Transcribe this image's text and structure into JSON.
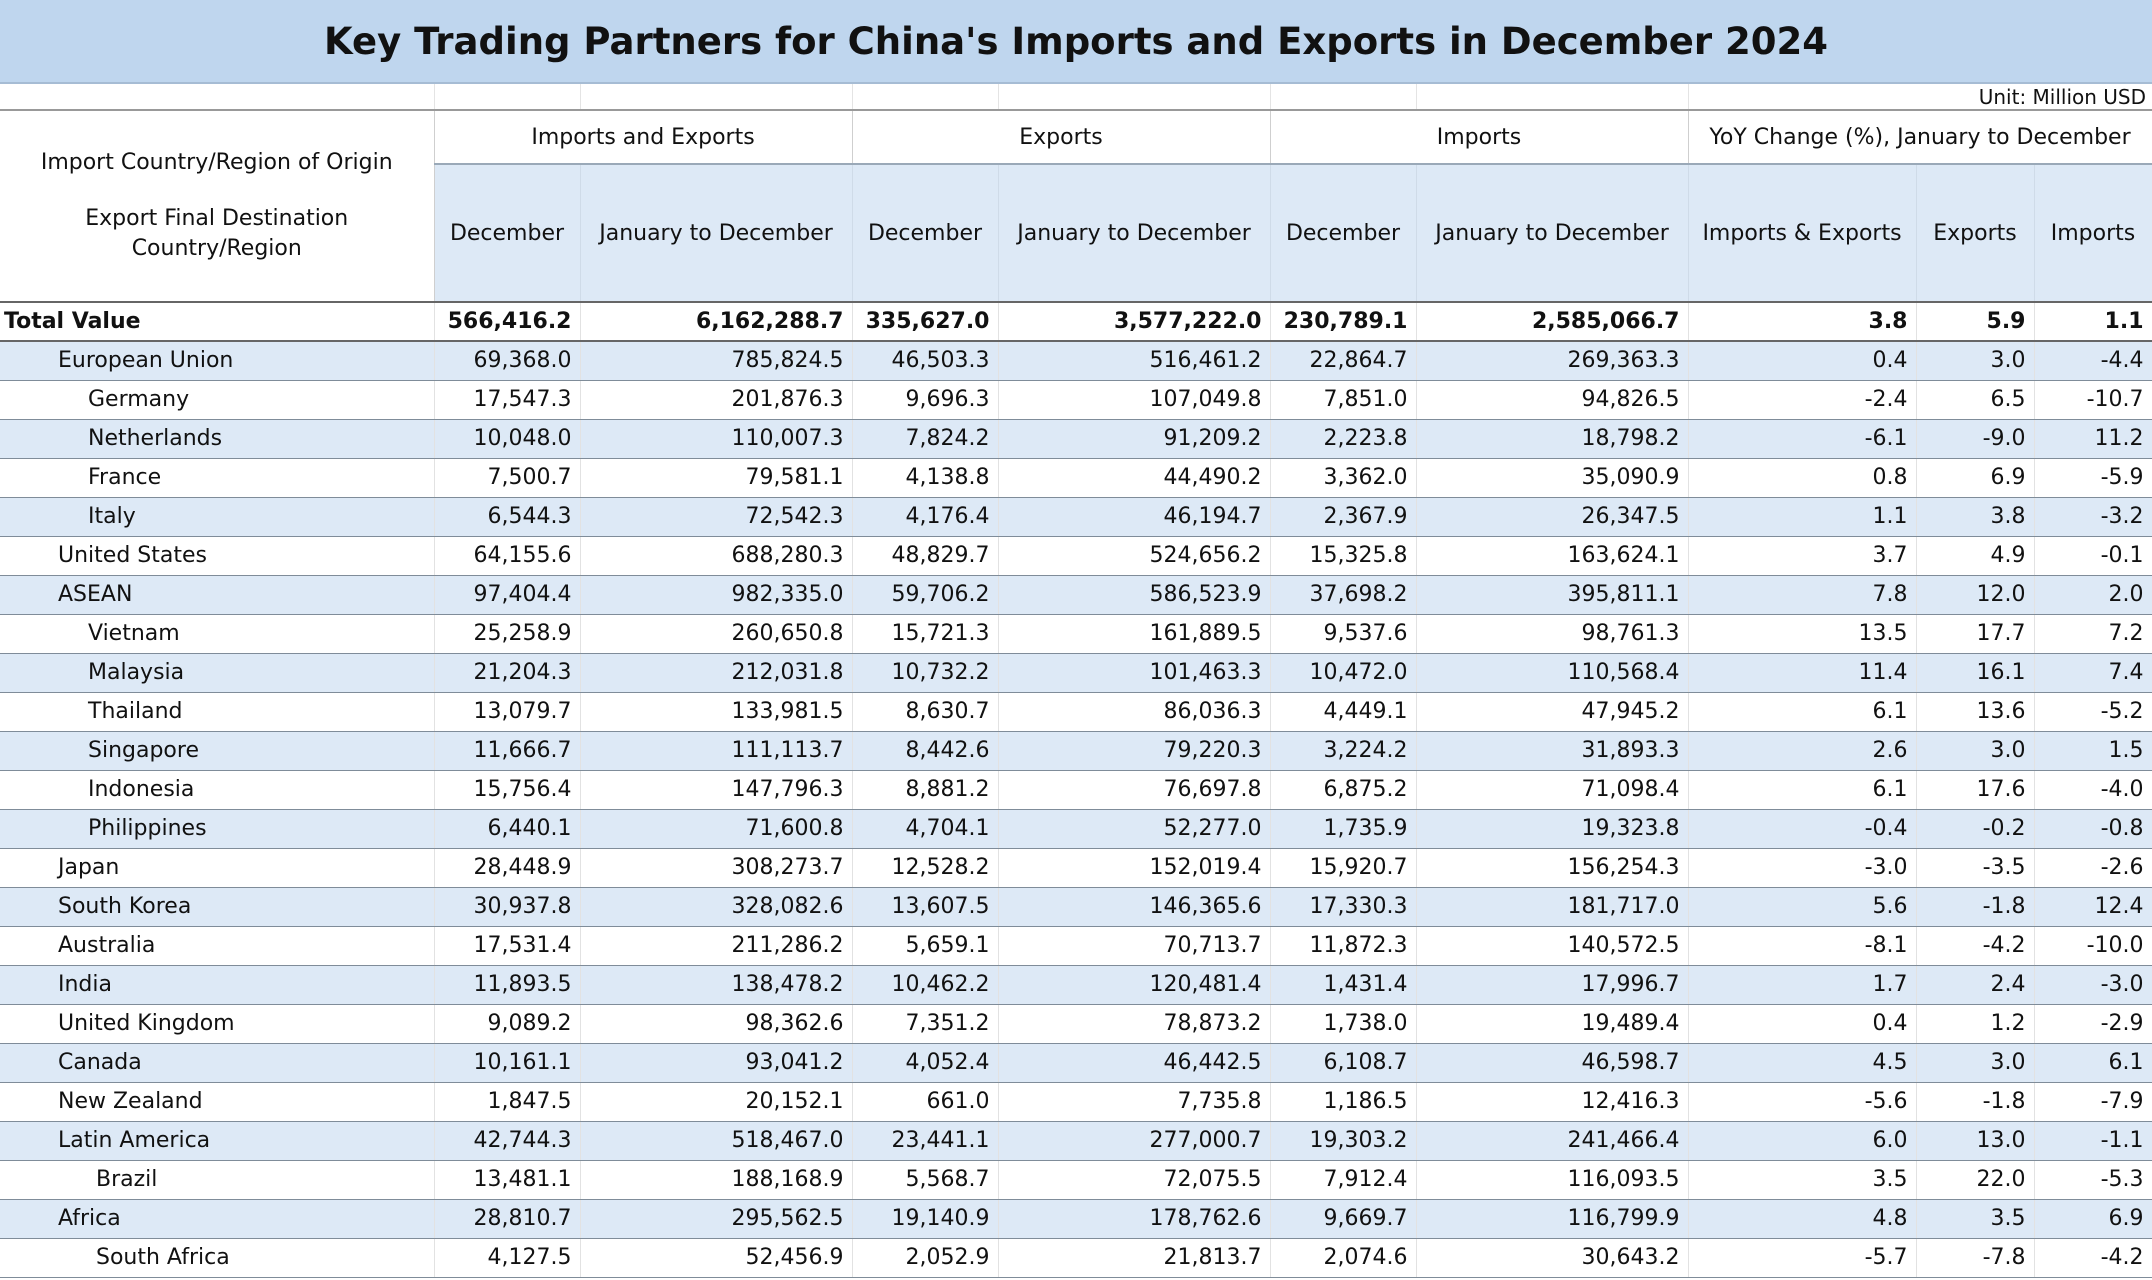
{
  "title": "Key Trading Partners for China's Imports and Exports in December 2024",
  "unit": "Unit: Million USD",
  "header": {
    "row_label_line1": "Import Country/Region of Origin",
    "row_label_line2": "Export Final Destination Country/Region",
    "groups": [
      "Imports and Exports",
      "Exports",
      "Imports",
      "YoY Change (%), January to December"
    ],
    "subheaders": [
      "December",
      "January to December",
      "December",
      "January to December",
      "December",
      "January to December",
      "Imports & Exports",
      "Exports",
      "Imports"
    ]
  },
  "rows": [
    {
      "name": "Total Value",
      "level": 0,
      "values": [
        "566,416.2",
        "6,162,288.7",
        "335,627.0",
        "3,577,222.0",
        "230,789.1",
        "2,585,066.7",
        "3.8",
        "5.9",
        "1.1"
      ]
    },
    {
      "name": "European Union",
      "level": 1,
      "values": [
        "69,368.0",
        "785,824.5",
        "46,503.3",
        "516,461.2",
        "22,864.7",
        "269,363.3",
        "0.4",
        "3.0",
        "-4.4"
      ]
    },
    {
      "name": "Germany",
      "level": 2,
      "values": [
        "17,547.3",
        "201,876.3",
        "9,696.3",
        "107,049.8",
        "7,851.0",
        "94,826.5",
        "-2.4",
        "6.5",
        "-10.7"
      ]
    },
    {
      "name": "Netherlands",
      "level": 2,
      "values": [
        "10,048.0",
        "110,007.3",
        "7,824.2",
        "91,209.2",
        "2,223.8",
        "18,798.2",
        "-6.1",
        "-9.0",
        "11.2"
      ]
    },
    {
      "name": "France",
      "level": 2,
      "values": [
        "7,500.7",
        "79,581.1",
        "4,138.8",
        "44,490.2",
        "3,362.0",
        "35,090.9",
        "0.8",
        "6.9",
        "-5.9"
      ]
    },
    {
      "name": "Italy",
      "level": 2,
      "values": [
        "6,544.3",
        "72,542.3",
        "4,176.4",
        "46,194.7",
        "2,367.9",
        "26,347.5",
        "1.1",
        "3.8",
        "-3.2"
      ]
    },
    {
      "name": "United States",
      "level": 1,
      "values": [
        "64,155.6",
        "688,280.3",
        "48,829.7",
        "524,656.2",
        "15,325.8",
        "163,624.1",
        "3.7",
        "4.9",
        "-0.1"
      ]
    },
    {
      "name": "ASEAN",
      "level": 1,
      "values": [
        "97,404.4",
        "982,335.0",
        "59,706.2",
        "586,523.9",
        "37,698.2",
        "395,811.1",
        "7.8",
        "12.0",
        "2.0"
      ]
    },
    {
      "name": "Vietnam",
      "level": 2,
      "values": [
        "25,258.9",
        "260,650.8",
        "15,721.3",
        "161,889.5",
        "9,537.6",
        "98,761.3",
        "13.5",
        "17.7",
        "7.2"
      ]
    },
    {
      "name": "Malaysia",
      "level": 2,
      "values": [
        "21,204.3",
        "212,031.8",
        "10,732.2",
        "101,463.3",
        "10,472.0",
        "110,568.4",
        "11.4",
        "16.1",
        "7.4"
      ]
    },
    {
      "name": "Thailand",
      "level": 2,
      "values": [
        "13,079.7",
        "133,981.5",
        "8,630.7",
        "86,036.3",
        "4,449.1",
        "47,945.2",
        "6.1",
        "13.6",
        "-5.2"
      ]
    },
    {
      "name": "Singapore",
      "level": 2,
      "values": [
        "11,666.7",
        "111,113.7",
        "8,442.6",
        "79,220.3",
        "3,224.2",
        "31,893.3",
        "2.6",
        "3.0",
        "1.5"
      ]
    },
    {
      "name": "Indonesia",
      "level": 2,
      "values": [
        "15,756.4",
        "147,796.3",
        "8,881.2",
        "76,697.8",
        "6,875.2",
        "71,098.4",
        "6.1",
        "17.6",
        "-4.0"
      ]
    },
    {
      "name": "Philippines",
      "level": 2,
      "values": [
        "6,440.1",
        "71,600.8",
        "4,704.1",
        "52,277.0",
        "1,735.9",
        "19,323.8",
        "-0.4",
        "-0.2",
        "-0.8"
      ]
    },
    {
      "name": "Japan",
      "level": 1,
      "values": [
        "28,448.9",
        "308,273.7",
        "12,528.2",
        "152,019.4",
        "15,920.7",
        "156,254.3",
        "-3.0",
        "-3.5",
        "-2.6"
      ]
    },
    {
      "name": "South Korea",
      "level": 1,
      "values": [
        "30,937.8",
        "328,082.6",
        "13,607.5",
        "146,365.6",
        "17,330.3",
        "181,717.0",
        "5.6",
        "-1.8",
        "12.4"
      ]
    },
    {
      "name": "Australia",
      "level": 1,
      "values": [
        "17,531.4",
        "211,286.2",
        "5,659.1",
        "70,713.7",
        "11,872.3",
        "140,572.5",
        "-8.1",
        "-4.2",
        "-10.0"
      ]
    },
    {
      "name": "India",
      "level": 1,
      "values": [
        "11,893.5",
        "138,478.2",
        "10,462.2",
        "120,481.4",
        "1,431.4",
        "17,996.7",
        "1.7",
        "2.4",
        "-3.0"
      ]
    },
    {
      "name": "United Kingdom",
      "level": 1,
      "values": [
        "9,089.2",
        "98,362.6",
        "7,351.2",
        "78,873.2",
        "1,738.0",
        "19,489.4",
        "0.4",
        "1.2",
        "-2.9"
      ]
    },
    {
      "name": "Canada",
      "level": 1,
      "values": [
        "10,161.1",
        "93,041.2",
        "4,052.4",
        "46,442.5",
        "6,108.7",
        "46,598.7",
        "4.5",
        "3.0",
        "6.1"
      ]
    },
    {
      "name": "New Zealand",
      "level": 1,
      "values": [
        "1,847.5",
        "20,152.1",
        "661.0",
        "7,735.8",
        "1,186.5",
        "12,416.3",
        "-5.6",
        "-1.8",
        "-7.9"
      ]
    },
    {
      "name": "Latin America",
      "level": 1,
      "values": [
        "42,744.3",
        "518,467.0",
        "23,441.1",
        "277,000.7",
        "19,303.2",
        "241,466.4",
        "6.0",
        "13.0",
        "-1.1"
      ]
    },
    {
      "name": "Brazil",
      "level": 3,
      "values": [
        "13,481.1",
        "188,168.9",
        "5,568.7",
        "72,075.5",
        "7,912.4",
        "116,093.5",
        "3.5",
        "22.0",
        "-5.3"
      ]
    },
    {
      "name": "Africa",
      "level": 1,
      "values": [
        "28,810.7",
        "295,562.5",
        "19,140.9",
        "178,762.6",
        "9,669.7",
        "116,799.9",
        "4.8",
        "3.5",
        "6.9"
      ]
    },
    {
      "name": "South Africa",
      "level": 3,
      "values": [
        "4,127.5",
        "52,456.9",
        "2,052.9",
        "21,813.7",
        "2,074.6",
        "30,643.2",
        "-5.7",
        "-7.8",
        "-4.2"
      ]
    }
  ]
}
